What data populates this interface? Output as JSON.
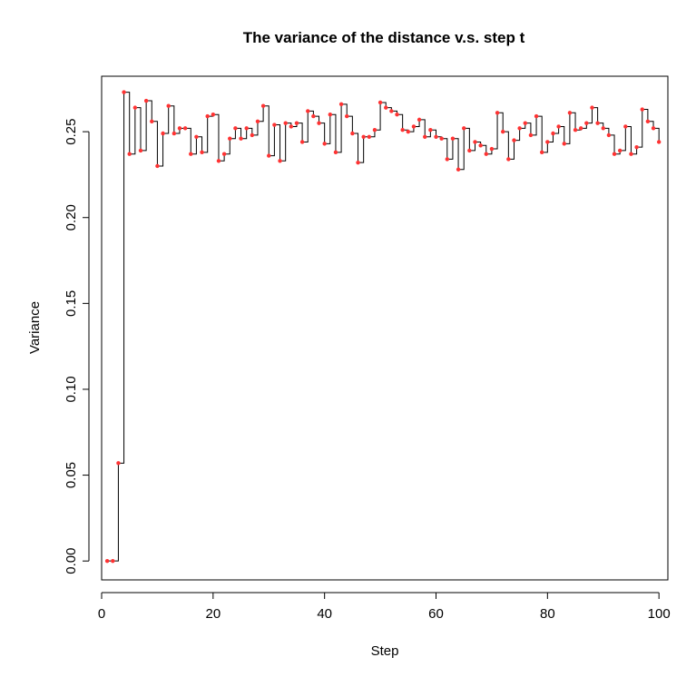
{
  "chart_data": {
    "type": "line",
    "style": "step",
    "title": "The variance of the distance v.s. step t",
    "xlabel": "Step",
    "ylabel": "Variance",
    "xlim": [
      0,
      101.6
    ],
    "ylim": [
      -0.011,
      0.2823
    ],
    "x_ticks": [
      0,
      20,
      40,
      60,
      80,
      100
    ],
    "x_tick_labels": [
      "0",
      "20",
      "40",
      "60",
      "80",
      "100"
    ],
    "y_ticks": [
      0.0,
      0.05,
      0.1,
      0.15,
      0.2,
      0.25
    ],
    "y_tick_labels": [
      "0.00",
      "0.05",
      "0.10",
      "0.15",
      "0.20",
      "0.25"
    ],
    "series": [
      {
        "name": "Variance",
        "line_color": "#000000",
        "point_color": "#ff3333",
        "x": [
          1,
          2,
          3,
          4,
          5,
          6,
          7,
          8,
          9,
          10,
          11,
          12,
          13,
          14,
          15,
          16,
          17,
          18,
          19,
          20,
          21,
          22,
          23,
          24,
          25,
          26,
          27,
          28,
          29,
          30,
          31,
          32,
          33,
          34,
          35,
          36,
          37,
          38,
          39,
          40,
          41,
          42,
          43,
          44,
          45,
          46,
          47,
          48,
          49,
          50,
          51,
          52,
          53,
          54,
          55,
          56,
          57,
          58,
          59,
          60,
          61,
          62,
          63,
          64,
          65,
          66,
          67,
          68,
          69,
          70,
          71,
          72,
          73,
          74,
          75,
          76,
          77,
          78,
          79,
          80,
          81,
          82,
          83,
          84,
          85,
          86,
          87,
          88,
          89,
          90,
          91,
          92,
          93,
          94,
          95,
          96,
          97,
          98,
          99,
          100
        ],
        "values": [
          0.0,
          0.0,
          0.057,
          0.273,
          0.237,
          0.264,
          0.239,
          0.268,
          0.256,
          0.23,
          0.249,
          0.265,
          0.249,
          0.252,
          0.252,
          0.237,
          0.247,
          0.238,
          0.259,
          0.26,
          0.233,
          0.237,
          0.246,
          0.252,
          0.246,
          0.252,
          0.248,
          0.256,
          0.265,
          0.236,
          0.254,
          0.233,
          0.255,
          0.253,
          0.255,
          0.244,
          0.262,
          0.259,
          0.255,
          0.243,
          0.26,
          0.238,
          0.266,
          0.259,
          0.249,
          0.232,
          0.247,
          0.247,
          0.251,
          0.267,
          0.264,
          0.262,
          0.26,
          0.251,
          0.25,
          0.253,
          0.257,
          0.247,
          0.251,
          0.247,
          0.246,
          0.234,
          0.246,
          0.228,
          0.252,
          0.239,
          0.244,
          0.242,
          0.237,
          0.24,
          0.261,
          0.25,
          0.234,
          0.245,
          0.252,
          0.255,
          0.248,
          0.259,
          0.238,
          0.244,
          0.249,
          0.253,
          0.243,
          0.261,
          0.251,
          0.252,
          0.255,
          0.264,
          0.255,
          0.252,
          0.248,
          0.237,
          0.239,
          0.253,
          0.237,
          0.241,
          0.263,
          0.256,
          0.252,
          0.244
        ]
      }
    ]
  }
}
